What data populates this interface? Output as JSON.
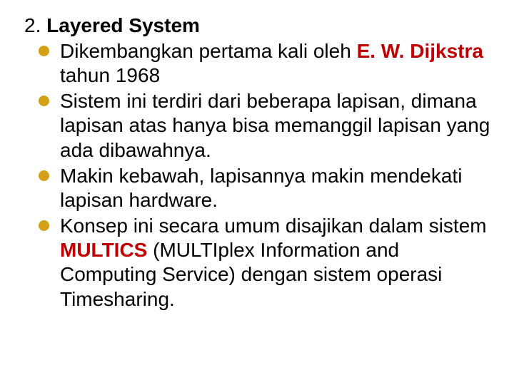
{
  "heading": {
    "number": "2. ",
    "title": "Layered System"
  },
  "bullet_color": "#d4a017",
  "highlight_color": "#c00000",
  "bullets": [
    {
      "pre": "Dikembangkan pertama kali oleh ",
      "hl": "E. W. Dijkstra",
      "post": " tahun 1968"
    },
    {
      "pre": "Sistem ini terdiri dari beberapa lapisan, dimana lapisan atas hanya bisa memanggil lapisan yang ada dibawahnya.",
      "hl": "",
      "post": ""
    },
    {
      "pre": "Makin kebawah, lapisannya makin mendekati lapisan hardware.",
      "hl": "",
      "post": ""
    },
    {
      "pre": "Konsep ini secara umum disajikan dalam sistem ",
      "hl": "MULTICS",
      "post": " (MULTIplex Information and Computing Service) dengan sistem operasi Timesharing."
    }
  ]
}
